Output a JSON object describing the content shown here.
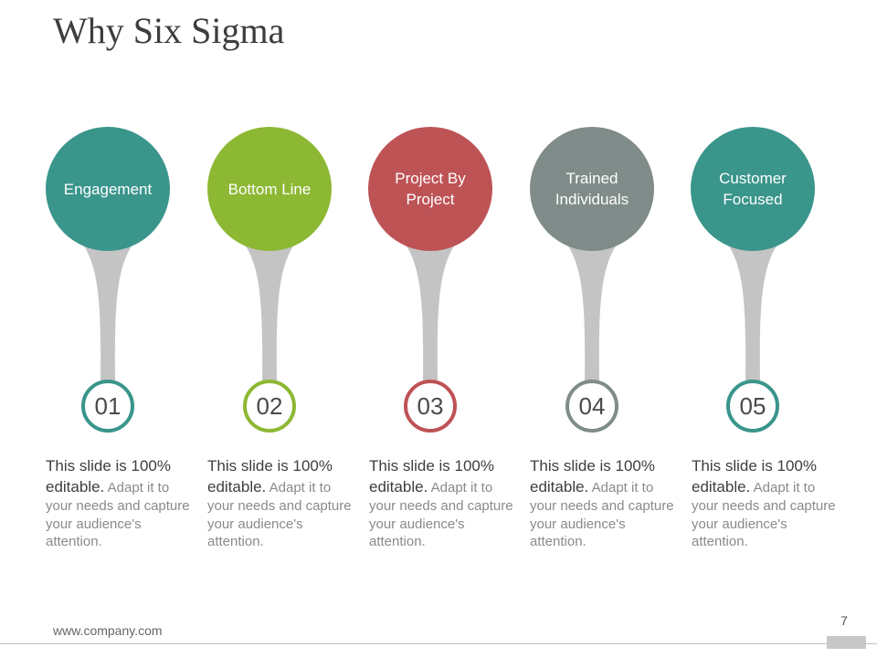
{
  "slide": {
    "title": "Why Six Sigma",
    "footer_url": "www.company.com",
    "page_number": "7"
  },
  "colors": {
    "teal": "#3a958b",
    "green": "#8db833",
    "red": "#be5356",
    "gray": "#7f8c8a",
    "stem": "#c4c4c4"
  },
  "items": [
    {
      "label": "Engagement",
      "number": "01",
      "color": "#3a958b",
      "desc_lead": "This slide is 100% editable.",
      "desc_rest": "Adapt it to your needs and capture your audience's attention."
    },
    {
      "label": "Bottom Line",
      "number": "02",
      "color": "#8db833",
      "desc_lead": "This slide is 100% editable.",
      "desc_rest": "Adapt it to your needs and capture your audience's attention."
    },
    {
      "label": "Project By Project",
      "number": "03",
      "color": "#be5356",
      "desc_lead": "This slide is 100% editable.",
      "desc_rest": "Adapt it to your needs and capture your audience's attention."
    },
    {
      "label": "Trained Individuals",
      "number": "04",
      "color": "#7f8c8a",
      "desc_lead": "This slide is 100% editable.",
      "desc_rest": "Adapt it to your needs and capture your audience's attention."
    },
    {
      "label": "Customer Focused",
      "number": "05",
      "color": "#3a958b",
      "desc_lead": "This slide is 100% editable.",
      "desc_rest": "Adapt it to your needs and capture your audience's attention."
    }
  ]
}
